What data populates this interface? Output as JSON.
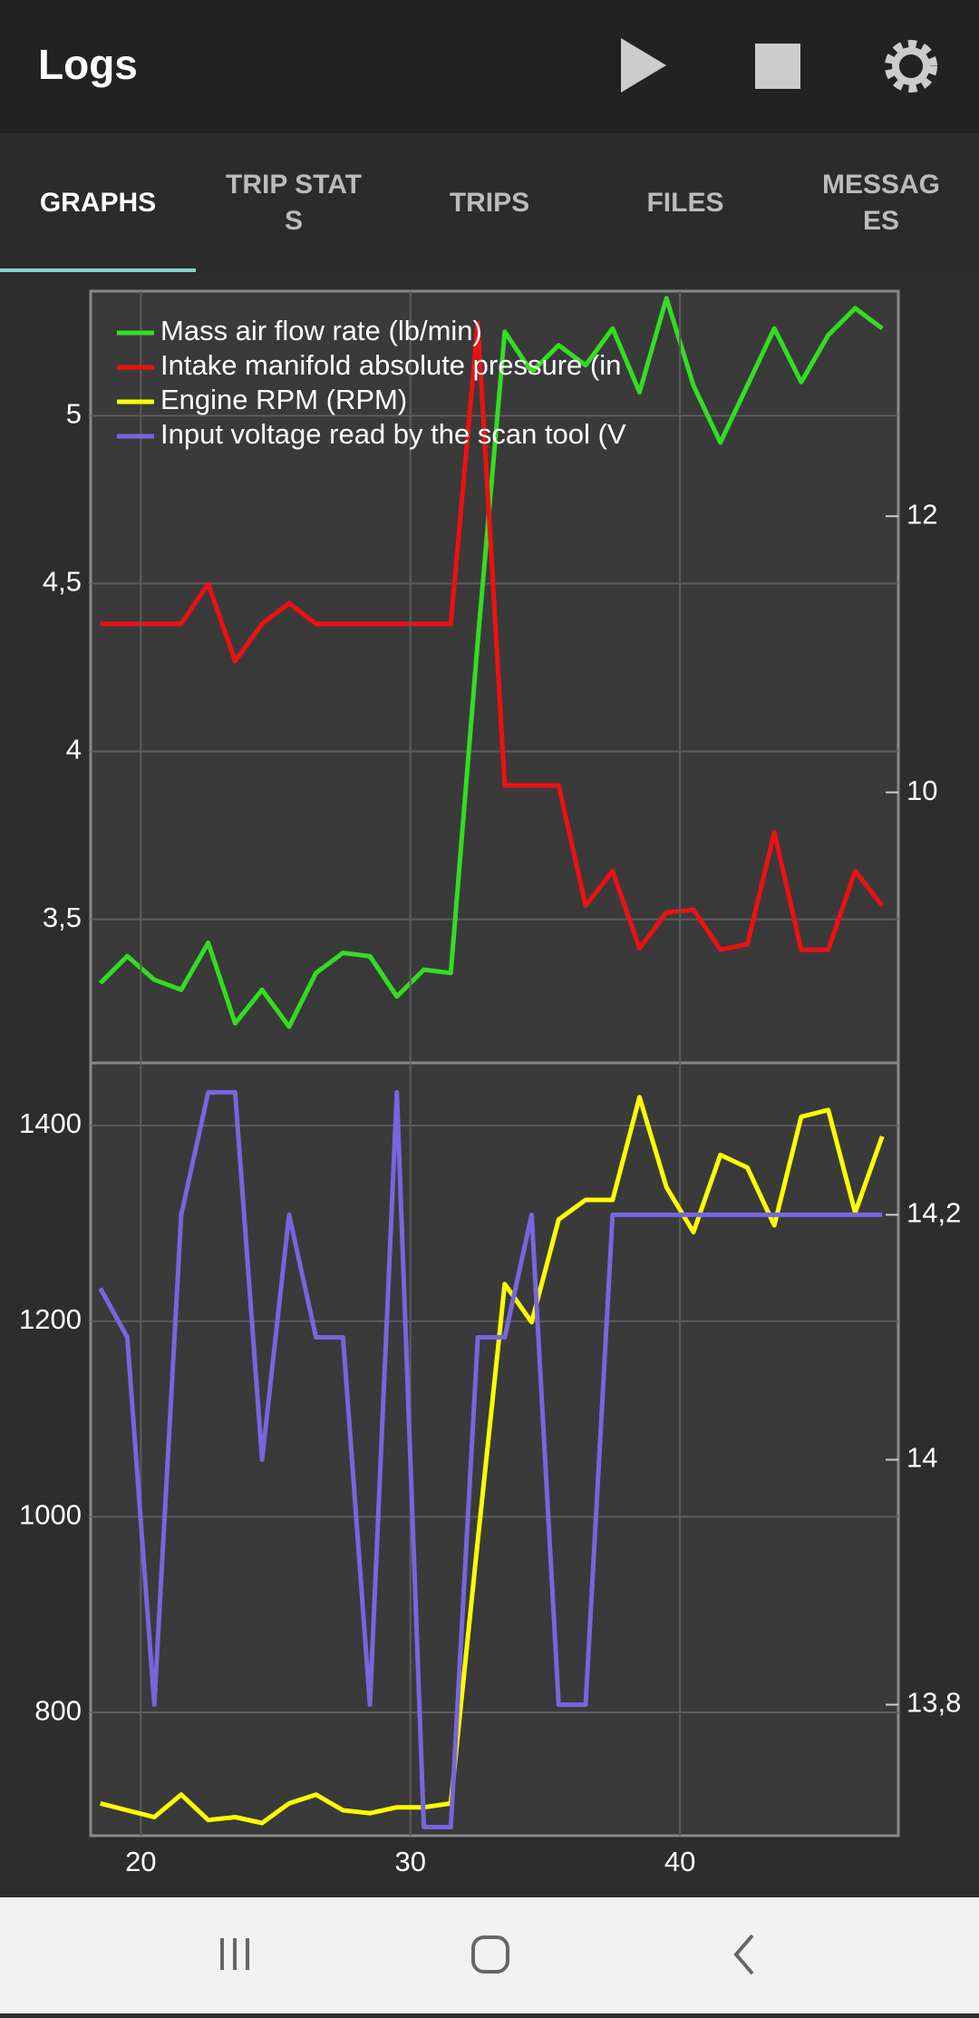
{
  "header": {
    "title": "Logs"
  },
  "tabs": [
    "GRAPHS",
    "TRIP STATS",
    "TRIPS",
    "FILES",
    "MESSAGES"
  ],
  "chart_data": [
    {
      "type": "line",
      "x": [
        18.5,
        19.5,
        20.5,
        21.5,
        22.5,
        23.5,
        24.5,
        25.5,
        26.5,
        27.5,
        28.5,
        29.5,
        30.5,
        31.5,
        32.5,
        33.5,
        34.5,
        35.5,
        36.5,
        37.5,
        38.5,
        39.5,
        40.5,
        41.5,
        42.5,
        43.5,
        44.5,
        45.5,
        46.5,
        47.5
      ],
      "xlim": [
        18.14,
        48.1
      ],
      "ylim": [
        3.072,
        5.371
      ],
      "yticks": [
        {
          "value": 3.5,
          "label": "3,5"
        },
        4,
        {
          "value": 4.5,
          "label": "4,5"
        },
        5
      ],
      "y2lim": [
        8.04,
        13.63
      ],
      "y2ticks": [
        10,
        12
      ],
      "grid": true,
      "legend": "top-left",
      "series": [
        {
          "name": "Mass air flow rate (lb/min)",
          "color": "#33dd22",
          "values": [
            3.31,
            3.39,
            3.32,
            3.29,
            3.43,
            3.19,
            3.29,
            3.18,
            3.34,
            3.4,
            3.39,
            3.27,
            3.35,
            3.34,
            4.33,
            5.25,
            5.13,
            5.21,
            5.15,
            5.26,
            5.07,
            5.35,
            5.09,
            4.92,
            5.09,
            5.26,
            5.1,
            5.24,
            5.32,
            5.26
          ]
        },
        {
          "name": "Intake manifold absolute pressure (in",
          "color": "#ee1111",
          "axis": "y2",
          "values": [
            11.22,
            11.22,
            11.22,
            11.22,
            11.51,
            10.95,
            11.22,
            11.37,
            11.22,
            11.22,
            11.22,
            11.22,
            11.22,
            11.22,
            13.4,
            10.05,
            10.05,
            10.05,
            9.18,
            9.43,
            8.87,
            9.13,
            9.15,
            8.86,
            8.9,
            9.71,
            8.86,
            8.86,
            9.43,
            9.18
          ]
        }
      ]
    },
    {
      "type": "line",
      "x": [
        18.5,
        19.5,
        20.5,
        21.5,
        22.5,
        23.5,
        24.5,
        25.5,
        26.5,
        27.5,
        28.5,
        29.5,
        30.5,
        31.5,
        32.5,
        33.5,
        34.5,
        35.5,
        36.5,
        37.5,
        38.5,
        39.5,
        40.5,
        41.5,
        42.5,
        43.5,
        44.5,
        45.5,
        46.5,
        47.5
      ],
      "xlim": [
        18.14,
        48.1
      ],
      "xticks": [
        20,
        30,
        40
      ],
      "ylim": [
        674,
        1464
      ],
      "yticks": [
        800,
        1000,
        1200,
        1400
      ],
      "y2lim": [
        13.693,
        14.324
      ],
      "y2ticks": [
        {
          "value": 13.8,
          "label": "13,8"
        },
        14,
        {
          "value": 14.2,
          "label": "14,2"
        }
      ],
      "grid": true,
      "series": [
        {
          "name": "Engine RPM (RPM)",
          "color": "#ffff00",
          "values": [
            707,
            700,
            693,
            716,
            690,
            693,
            687,
            707,
            716,
            700,
            697,
            703,
            703,
            707,
            976,
            1238,
            1199,
            1304,
            1324,
            1324,
            1429,
            1337,
            1291,
            1370,
            1357,
            1298,
            1409,
            1416,
            1311,
            1389
          ]
        },
        {
          "name": "Input voltage read by the scan tool (V",
          "color": "#7766dd",
          "axis": "y2",
          "values": [
            14.14,
            14.1,
            13.8,
            14.2,
            14.3,
            14.3,
            14.0,
            14.2,
            14.1,
            14.1,
            13.8,
            14.3,
            13.7,
            13.7,
            14.1,
            14.1,
            14.2,
            13.8,
            13.8,
            14.2,
            14.2,
            14.2,
            14.2,
            14.2,
            14.2,
            14.2,
            14.2,
            14.2,
            14.2,
            14.2
          ]
        }
      ]
    }
  ]
}
